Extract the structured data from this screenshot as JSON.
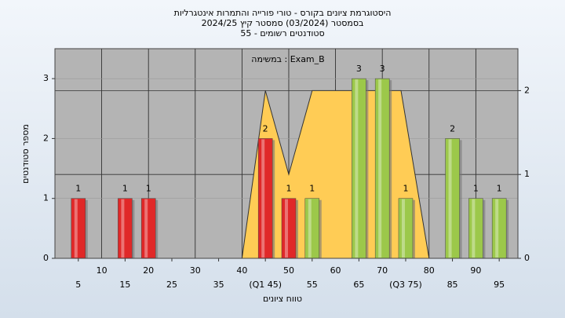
{
  "chart_data": {
    "type": "bar",
    "title_lines": [
      "היסטוגרמת ציונים בקורס - טורי פורייה והתמרות אינטגרליות",
      "בסמסטר (03/2024) סמסטר קיץ 2024/25",
      "סטודנטים רשומים - 55"
    ],
    "annotation": "במשימה : Exam_B",
    "x_label": "טווח ציונים",
    "y_label": "מספר סטודנטים",
    "x": [
      5,
      15,
      20,
      45,
      50,
      55,
      65,
      70,
      75,
      85,
      90,
      95
    ],
    "values": [
      1,
      1,
      1,
      2,
      1,
      1,
      3,
      3,
      1,
      2,
      1,
      1
    ],
    "colors": [
      "#e02828",
      "#e02828",
      "#e02828",
      "#e02828",
      "#e02828",
      "#9cc84a",
      "#9cc84a",
      "#9cc84a",
      "#9cc84a",
      "#9cc84a",
      "#9cc84a",
      "#9cc84a"
    ],
    "area": {
      "axis": "y2",
      "color": "#ffcc55",
      "x": [
        40,
        45,
        50,
        55,
        74,
        80
      ],
      "values": [
        0,
        2,
        1,
        2,
        2,
        0
      ]
    },
    "xlim": [
      0,
      99
    ],
    "xticks": [
      10,
      20,
      30,
      40,
      50,
      60,
      70,
      80,
      90
    ],
    "xticks2": [
      5,
      15,
      25,
      35,
      {
        "value": 45,
        "label": "(Q1 45)"
      },
      55,
      65,
      {
        "value": 75,
        "label": "(Q3 75)"
      },
      85,
      95
    ],
    "ylim": [
      0,
      3.5
    ],
    "yticks": [
      0,
      1,
      2,
      3
    ],
    "y2lim": [
      0,
      2.5
    ],
    "y2ticks": [
      0,
      1,
      2
    ],
    "grid": true
  }
}
